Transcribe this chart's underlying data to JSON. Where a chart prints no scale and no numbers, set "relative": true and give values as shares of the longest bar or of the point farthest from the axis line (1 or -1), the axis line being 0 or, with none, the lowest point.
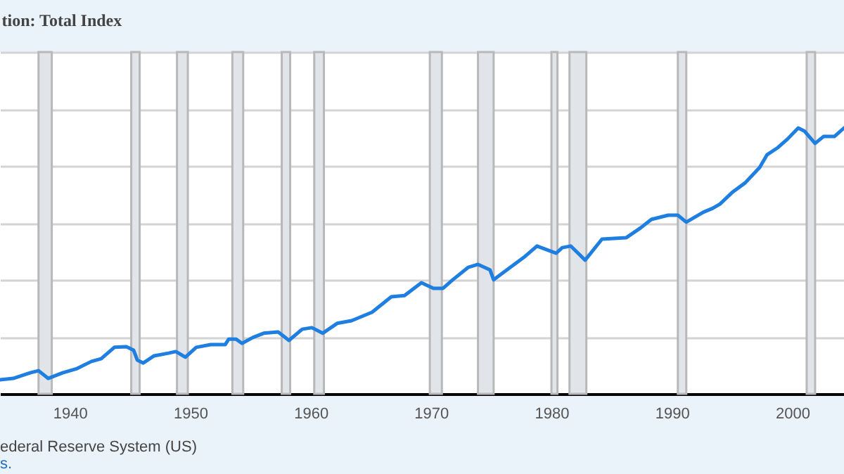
{
  "chart_data": {
    "type": "line",
    "title": "tion: Total Index",
    "relative": true,
    "grid": "y",
    "xlim": [
      1934.2,
      2004.3
    ],
    "xticks": [
      1940,
      1950,
      1960,
      1970,
      1980,
      1990,
      2000
    ],
    "annotations": [
      "ederal Reserve System (US)",
      "s."
    ],
    "bands": [
      {
        "axis": "x",
        "from": 1937.4,
        "to": 1938.5,
        "color": "#e1e5ea"
      },
      {
        "axis": "x",
        "from": 1945.1,
        "to": 1945.8,
        "color": "#e1e5ea"
      },
      {
        "axis": "x",
        "from": 1948.9,
        "to": 1949.8,
        "color": "#e1e5ea"
      },
      {
        "axis": "x",
        "from": 1953.5,
        "to": 1954.4,
        "color": "#e1e5ea"
      },
      {
        "axis": "x",
        "from": 1957.6,
        "to": 1958.3,
        "color": "#e1e5ea"
      },
      {
        "axis": "x",
        "from": 1960.3,
        "to": 1961.1,
        "color": "#e1e5ea"
      },
      {
        "axis": "x",
        "from": 1969.9,
        "to": 1970.9,
        "color": "#e1e5ea"
      },
      {
        "axis": "x",
        "from": 1973.9,
        "to": 1975.2,
        "color": "#e1e5ea"
      },
      {
        "axis": "x",
        "from": 1980.0,
        "to": 1980.5,
        "color": "#e1e5ea"
      },
      {
        "axis": "x",
        "from": 1981.5,
        "to": 1982.9,
        "color": "#e1e5ea"
      },
      {
        "axis": "x",
        "from": 1990.5,
        "to": 1991.2,
        "color": "#e1e5ea"
      },
      {
        "axis": "x",
        "from": 2001.2,
        "to": 2001.9,
        "color": "#e1e5ea"
      }
    ],
    "series": [
      {
        "color": "#1f7fe0",
        "x": [
          1934.2,
          1935.3,
          1936.7,
          1937.4,
          1938.2,
          1939.4,
          1940.6,
          1941.8,
          1942.6,
          1943.7,
          1944.7,
          1945.3,
          1945.6,
          1946.1,
          1947.0,
          1948.2,
          1948.8,
          1949.6,
          1950.5,
          1951.7,
          1952.9,
          1953.2,
          1953.8,
          1954.3,
          1955.2,
          1956.1,
          1957.3,
          1958.2,
          1959.3,
          1960.1,
          1961.0,
          1962.2,
          1963.4,
          1965.1,
          1966.7,
          1967.8,
          1969.2,
          1970.2,
          1971.0,
          1971.8,
          1973.1,
          1973.9,
          1974.9,
          1975.2,
          1976.3,
          1977.7,
          1978.8,
          1980.4,
          1980.9,
          1981.6,
          1982.8,
          1984.2,
          1986.2,
          1987.4,
          1988.3,
          1989.7,
          1990.5,
          1991.2,
          1992.6,
          1993.4,
          1994.0,
          1995.0,
          1996.1,
          1997.3,
          1997.9,
          1998.8,
          1999.6,
          2000.5,
          2001.0,
          2001.9,
          2002.6,
          2003.5,
          2004.3
        ],
        "values": [
          0.053,
          0.058,
          0.079,
          0.087,
          0.058,
          0.079,
          0.095,
          0.122,
          0.132,
          0.175,
          0.177,
          0.164,
          0.127,
          0.116,
          0.143,
          0.153,
          0.159,
          0.138,
          0.175,
          0.185,
          0.185,
          0.206,
          0.206,
          0.19,
          0.212,
          0.228,
          0.233,
          0.201,
          0.243,
          0.249,
          0.228,
          0.265,
          0.275,
          0.307,
          0.365,
          0.37,
          0.418,
          0.397,
          0.397,
          0.429,
          0.476,
          0.487,
          0.466,
          0.429,
          0.466,
          0.513,
          0.556,
          0.529,
          0.55,
          0.556,
          0.503,
          0.582,
          0.587,
          0.624,
          0.656,
          0.672,
          0.672,
          0.646,
          0.683,
          0.698,
          0.714,
          0.757,
          0.794,
          0.852,
          0.899,
          0.926,
          0.958,
          1.0,
          0.989,
          0.942,
          0.968,
          0.968,
          1.0
        ]
      }
    ]
  }
}
